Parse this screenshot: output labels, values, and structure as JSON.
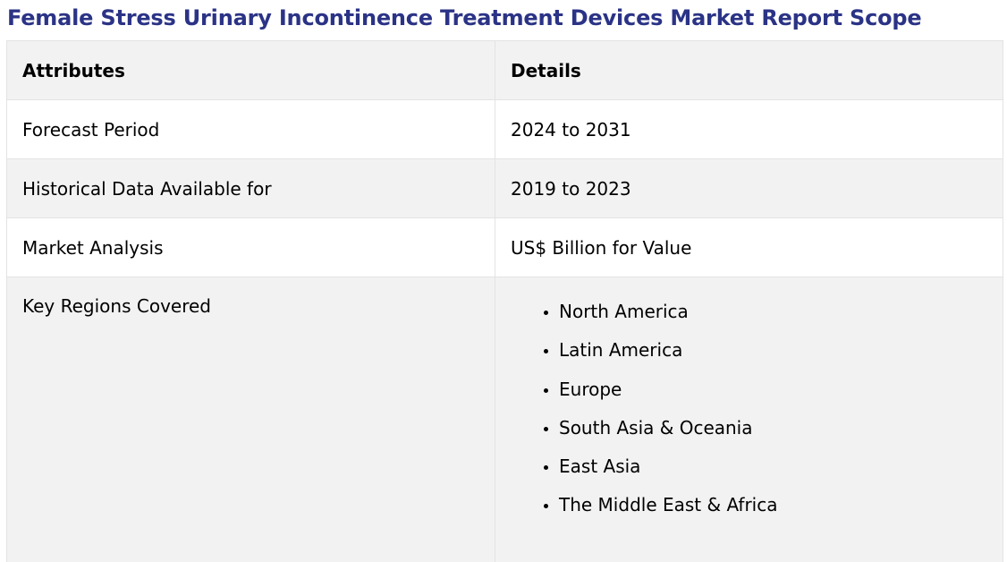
{
  "page": {
    "title": "Female Stress Urinary Incontinence Treatment Devices Market Report Scope"
  },
  "table": {
    "headers": [
      "Attributes",
      "Details"
    ],
    "rows": [
      {
        "attribute": "Forecast Period",
        "detail": "2024 to 2031"
      },
      {
        "attribute": "Historical Data Available for",
        "detail": "2019 to 2023"
      },
      {
        "attribute": "Market Analysis",
        "detail": "US$ Billion for Value"
      }
    ],
    "regions": {
      "attribute": "Key Regions Covered",
      "items": [
        "North America",
        "Latin America",
        "Europe",
        "South Asia & Oceania",
        "East Asia",
        "The Middle East & Africa"
      ]
    }
  },
  "colors": {
    "title": "#2b3386",
    "row_shade": "#f2f2f2",
    "border": "#e3e3e3"
  }
}
